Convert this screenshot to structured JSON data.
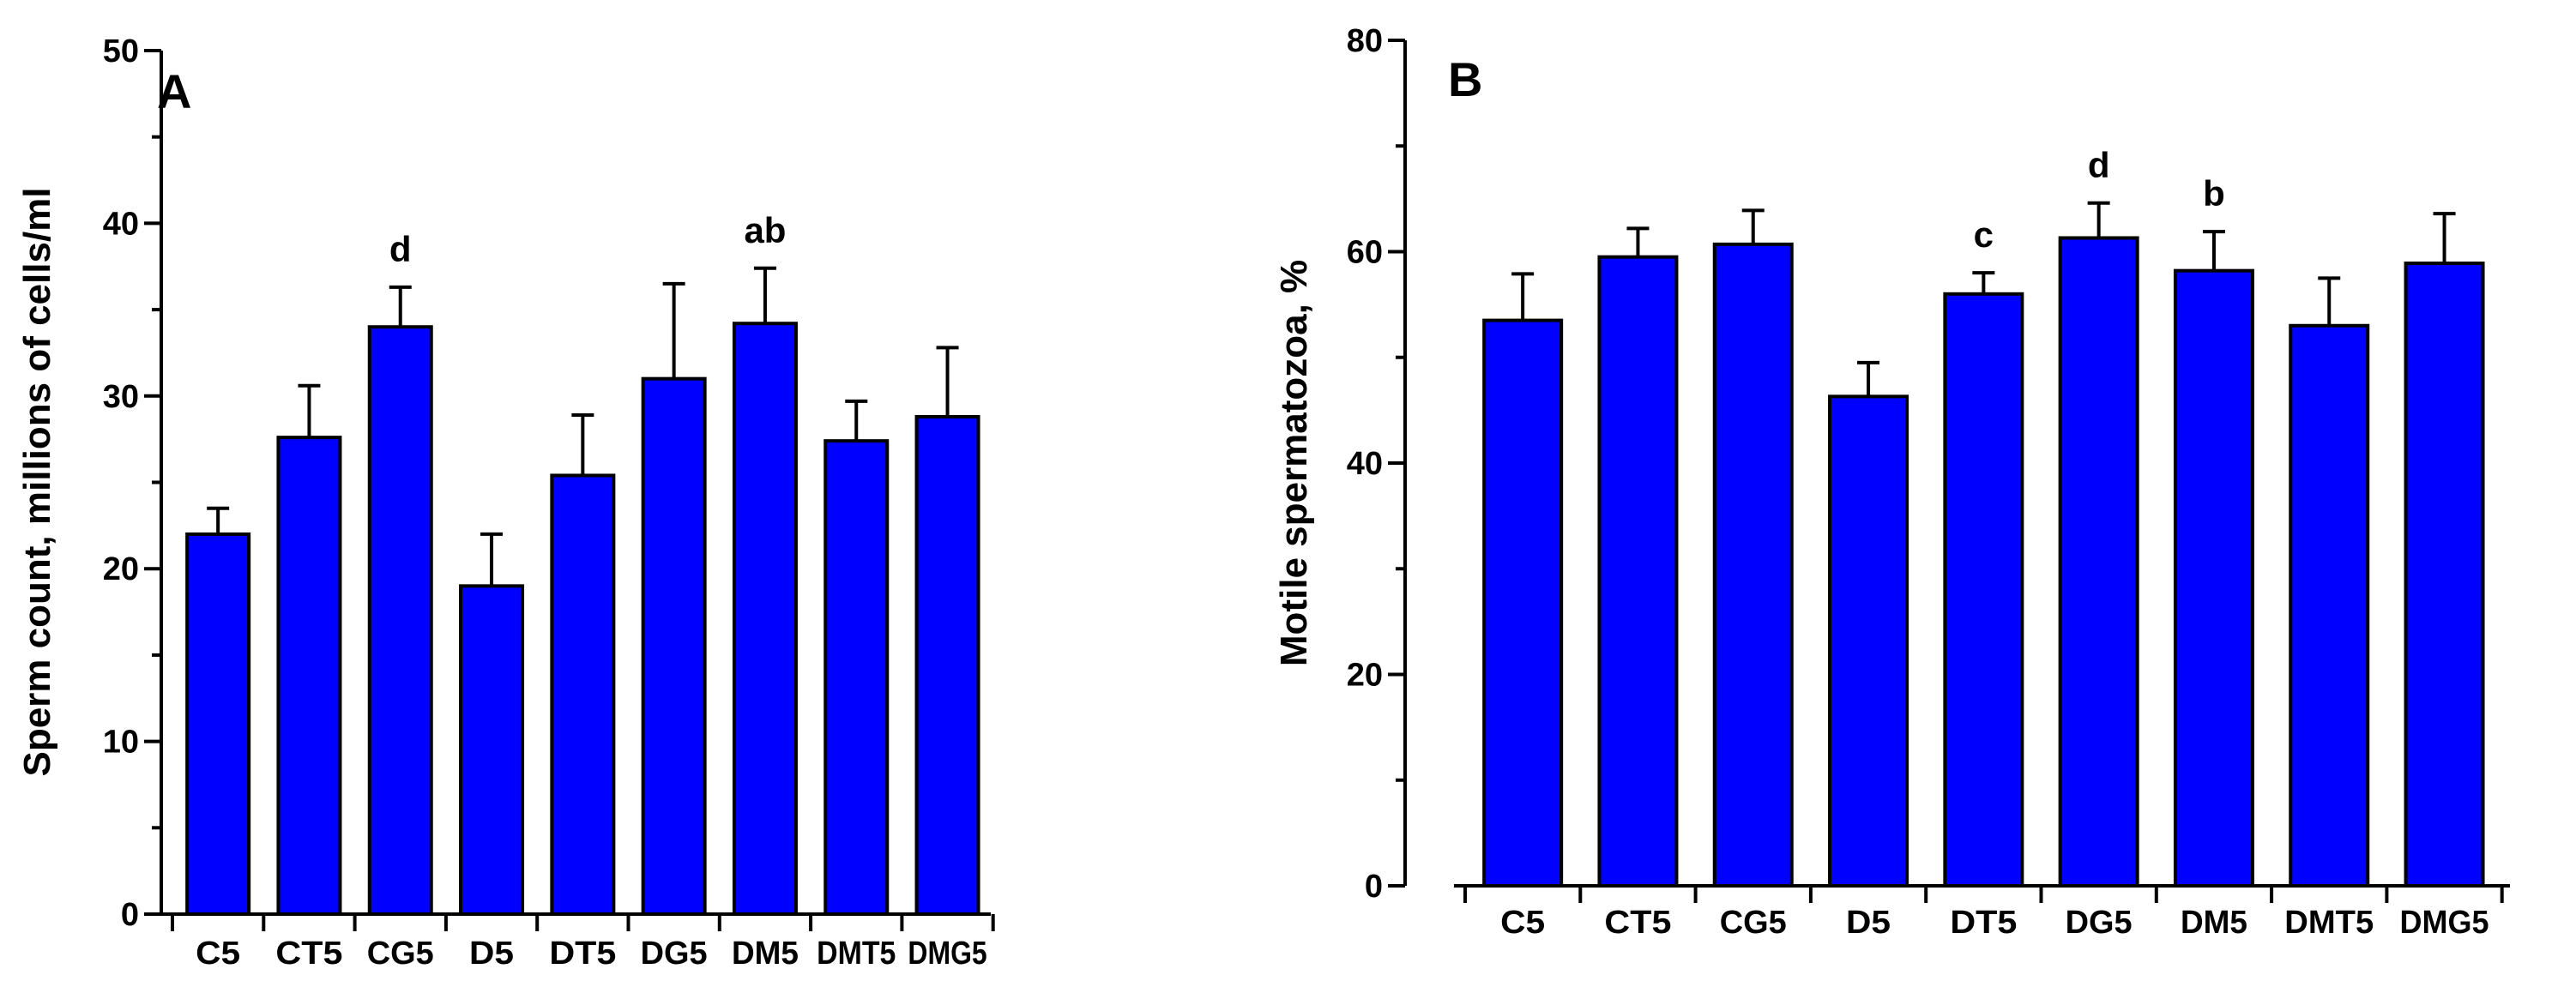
{
  "chart_data": [
    {
      "type": "bar",
      "panel_label": "A",
      "ylabel": "Sperm count, millions of cells/ml",
      "ylim": [
        0,
        50
      ],
      "yticks": [
        0,
        10,
        20,
        30,
        40,
        50
      ],
      "categories": [
        "C5",
        "CT5",
        "CG5",
        "D5",
        "DT5",
        "DG5",
        "DM5",
        "DMT5",
        "DMG5"
      ],
      "values": [
        22,
        27.6,
        34,
        19,
        25.4,
        31,
        34.2,
        27.4,
        28.8
      ],
      "errors": [
        1.5,
        3,
        2.3,
        3,
        3.5,
        5.5,
        3.2,
        2.3,
        4
      ],
      "annotations": [
        "",
        "",
        "d",
        "",
        "",
        "",
        "ab",
        "",
        ""
      ],
      "bar_color": "#0000ff",
      "grid": false
    },
    {
      "type": "bar",
      "panel_label": "B",
      "ylabel": "Motile spermatozoa, %",
      "ylim": [
        0,
        80
      ],
      "yticks": [
        0,
        20,
        40,
        60,
        80
      ],
      "categories": [
        "C5",
        "CT5",
        "CG5",
        "D5",
        "DT5",
        "DG5",
        "DM5",
        "DMT5",
        "DMG5"
      ],
      "values": [
        53.5,
        59.5,
        60.7,
        46.3,
        56,
        61.3,
        58.2,
        53,
        58.9
      ],
      "errors": [
        4.4,
        2.7,
        3.2,
        3.2,
        2,
        3.3,
        3.7,
        4.5,
        4.7
      ],
      "annotations": [
        "",
        "",
        "",
        "",
        "c",
        "d",
        "b",
        "",
        ""
      ],
      "bar_color": "#0000ff",
      "grid": false
    }
  ]
}
